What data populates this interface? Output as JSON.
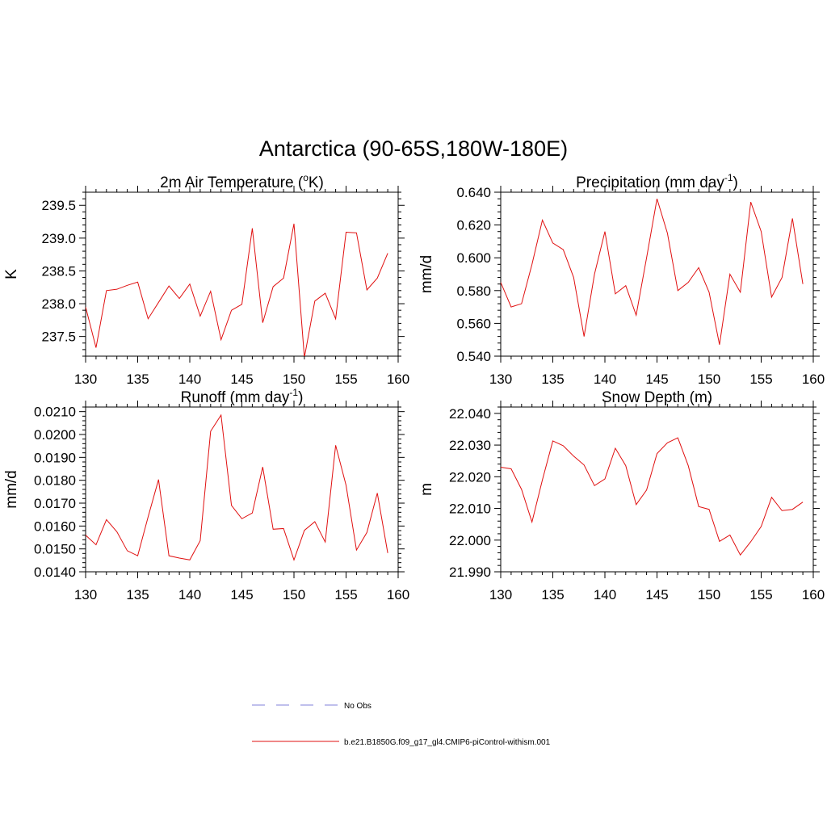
{
  "figure_title": "Antarctica (90-65S,180W-180E)",
  "legend": {
    "obs_label": "No Obs",
    "obs_color": "#9a9ae0",
    "model_label": "b.e21.B1850G.f09_g17_gl4.CMIP6-piControl-withism.001",
    "model_color": "#e01010"
  },
  "chart_data": [
    {
      "type": "line",
      "title": "2m Air Temperature (",
      "title_sup": "o",
      "title_suffix": "K)",
      "ylabel": "K",
      "xlim": [
        130,
        160
      ],
      "ylim": [
        237.2,
        239.7
      ],
      "xticks": [
        130,
        135,
        140,
        145,
        150,
        155,
        160
      ],
      "xtick_labels": [
        "130",
        "135",
        "140",
        "145",
        "150",
        "155",
        "160"
      ],
      "yticks": [
        237.5,
        238.0,
        238.5,
        239.0,
        239.5
      ],
      "ytick_labels": [
        "237.5",
        "238.0",
        "238.5",
        "239.0",
        "239.5"
      ],
      "series": [
        {
          "x": [
            130,
            131,
            132,
            133,
            134,
            135,
            136,
            137,
            138,
            139,
            140,
            141,
            142,
            143,
            144,
            145,
            146,
            147,
            148,
            149,
            150,
            151,
            152,
            153,
            154,
            155,
            156,
            157,
            158,
            159
          ],
          "values": [
            237.95,
            237.33,
            238.2,
            238.22,
            238.28,
            238.33,
            237.77,
            238.02,
            238.27,
            238.08,
            238.3,
            237.81,
            238.19,
            237.45,
            237.9,
            237.99,
            239.15,
            237.71,
            238.26,
            238.39,
            239.22,
            237.18,
            238.04,
            238.16,
            237.77,
            239.09,
            239.08,
            238.21,
            238.39,
            238.77
          ]
        }
      ]
    },
    {
      "type": "line",
      "title": "Precipitation (mm day",
      "title_sup": "-1",
      "title_suffix": ")",
      "ylabel": "mm/d",
      "xlim": [
        130,
        160
      ],
      "ylim": [
        0.54,
        0.64
      ],
      "xticks": [
        130,
        135,
        140,
        145,
        150,
        155,
        160
      ],
      "xtick_labels": [
        "130",
        "135",
        "140",
        "145",
        "150",
        "155",
        "160"
      ],
      "yticks": [
        0.54,
        0.56,
        0.58,
        0.6,
        0.62,
        0.64
      ],
      "ytick_labels": [
        "0.540",
        "0.560",
        "0.580",
        "0.600",
        "0.620",
        "0.640"
      ],
      "series": [
        {
          "x": [
            130,
            131,
            132,
            133,
            134,
            135,
            136,
            137,
            138,
            139,
            140,
            141,
            142,
            143,
            144,
            145,
            146,
            147,
            148,
            149,
            150,
            151,
            152,
            153,
            154,
            155,
            156,
            157,
            158,
            159
          ],
          "values": [
            0.585,
            0.57,
            0.572,
            0.596,
            0.623,
            0.609,
            0.605,
            0.588,
            0.552,
            0.59,
            0.616,
            0.578,
            0.583,
            0.565,
            0.6,
            0.636,
            0.615,
            0.58,
            0.585,
            0.594,
            0.579,
            0.547,
            0.59,
            0.579,
            0.634,
            0.616,
            0.576,
            0.588,
            0.624,
            0.584
          ]
        }
      ]
    },
    {
      "type": "line",
      "title": "Runoff (mm day",
      "title_sup": "-1",
      "title_suffix": ")",
      "ylabel": "mm/d",
      "xlim": [
        130,
        160
      ],
      "ylim": [
        0.014,
        0.0212
      ],
      "xticks": [
        130,
        135,
        140,
        145,
        150,
        155,
        160
      ],
      "xtick_labels": [
        "130",
        "135",
        "140",
        "145",
        "150",
        "155",
        "160"
      ],
      "yticks": [
        0.014,
        0.015,
        0.016,
        0.017,
        0.018,
        0.019,
        0.02,
        0.021
      ],
      "ytick_labels": [
        "0.0140",
        "0.0150",
        "0.0160",
        "0.0170",
        "0.0180",
        "0.0190",
        "0.0200",
        "0.0210"
      ],
      "series": [
        {
          "x": [
            130,
            131,
            132,
            133,
            134,
            135,
            136,
            137,
            138,
            139,
            140,
            141,
            142,
            143,
            144,
            145,
            146,
            147,
            148,
            149,
            150,
            151,
            152,
            153,
            154,
            155,
            156,
            157,
            158,
            159
          ],
          "values": [
            0.0156,
            0.01518,
            0.01628,
            0.01575,
            0.01492,
            0.0147,
            0.0164,
            0.01803,
            0.0147,
            0.0146,
            0.01452,
            0.01536,
            0.02014,
            0.02085,
            0.0169,
            0.01632,
            0.01657,
            0.01858,
            0.01586,
            0.01589,
            0.01452,
            0.01581,
            0.01619,
            0.0153,
            0.01953,
            0.01778,
            0.01495,
            0.01572,
            0.01744,
            0.01482
          ]
        }
      ]
    },
    {
      "type": "line",
      "title": "Snow Depth (m)",
      "title_sup": "",
      "title_suffix": "",
      "ylabel": "m",
      "xlim": [
        130,
        160
      ],
      "ylim": [
        21.99,
        22.042
      ],
      "xticks": [
        130,
        135,
        140,
        145,
        150,
        155,
        160
      ],
      "xtick_labels": [
        "130",
        "135",
        "140",
        "145",
        "150",
        "155",
        "160"
      ],
      "yticks": [
        21.99,
        22.0,
        22.01,
        22.02,
        22.03,
        22.04
      ],
      "ytick_labels": [
        "21.990",
        "22.000",
        "22.010",
        "22.020",
        "22.030",
        "22.040"
      ],
      "series": [
        {
          "x": [
            130,
            131,
            132,
            133,
            134,
            135,
            136,
            137,
            138,
            139,
            140,
            141,
            142,
            143,
            144,
            145,
            146,
            147,
            148,
            149,
            150,
            151,
            152,
            153,
            154,
            155,
            156,
            157,
            158,
            159
          ],
          "values": [
            22.023,
            22.0225,
            22.016,
            22.0057,
            22.019,
            22.0313,
            22.0298,
            22.0265,
            22.0237,
            22.0172,
            22.0193,
            22.029,
            22.0235,
            22.0112,
            22.0158,
            22.0273,
            22.0307,
            22.0323,
            22.0235,
            22.0106,
            22.0097,
            21.9996,
            22.0016,
            21.9953,
            21.9995,
            22.0043,
            22.0135,
            22.0093,
            22.0097,
            22.012
          ]
        }
      ]
    }
  ]
}
